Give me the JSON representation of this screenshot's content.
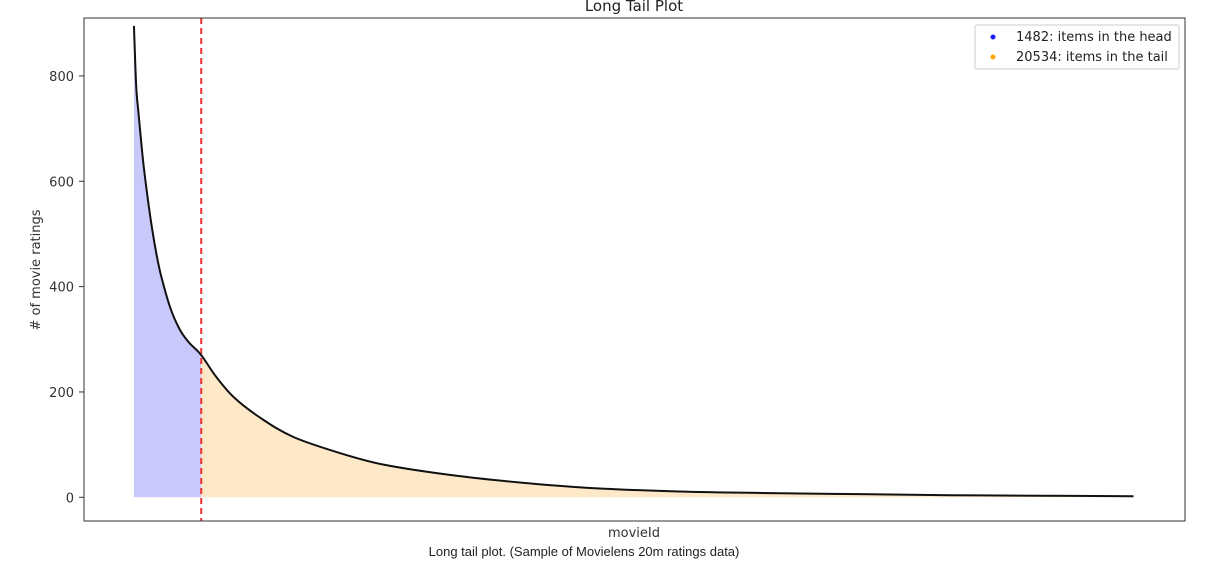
{
  "caption": "Long tail plot. (Sample of Movielens 20m ratings data)",
  "colors": {
    "head_fill": "#c8c8fa",
    "tail_fill": "#fde8c8",
    "curve": "#111111",
    "cutoff": "#ee3333",
    "head_marker": "#1a1aff",
    "tail_marker": "#ffa500"
  },
  "chart_data": {
    "type": "area",
    "title": "Long Tail Plot",
    "xlabel": "movieId",
    "ylabel": "# of movie ratings",
    "ylim": [
      -45,
      910
    ],
    "xlim": [
      -1100,
      23150
    ],
    "yticks": [
      0,
      200,
      400,
      600,
      800
    ],
    "grid": false,
    "legend_position": "top-right",
    "cutoff_x": 1482,
    "series": [
      {
        "name": "1482: items in the head",
        "color": "#1a1aff",
        "x_range": [
          0,
          1482
        ]
      },
      {
        "name": "20534: items in the tail",
        "color": "#ffa500",
        "x_range": [
          1482,
          22016
        ]
      }
    ],
    "curve": {
      "x": [
        0,
        50,
        100,
        200,
        300,
        400,
        500,
        600,
        800,
        1000,
        1200,
        1482,
        1800,
        2200,
        2800,
        3500,
        4500,
        5500,
        7000,
        8500,
        10000,
        12000,
        14000,
        16000,
        18000,
        20000,
        22016
      ],
      "y": [
        895,
        780,
        730,
        640,
        570,
        510,
        460,
        420,
        360,
        320,
        295,
        270,
        230,
        190,
        150,
        115,
        85,
        62,
        42,
        28,
        18,
        11,
        8,
        6,
        4,
        3,
        2
      ]
    }
  }
}
